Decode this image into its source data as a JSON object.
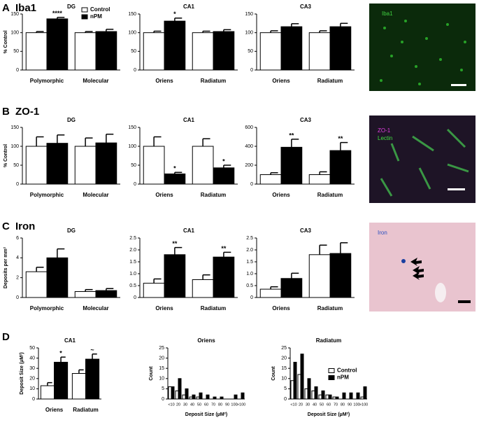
{
  "panels": [
    {
      "letter": "A",
      "label": "Iba1"
    },
    {
      "letter": "B",
      "label": "ZO-1"
    },
    {
      "letter": "C",
      "label": "Iron"
    },
    {
      "letter": "D"
    }
  ],
  "images": [
    {
      "labels": [
        "Iba1"
      ]
    },
    {
      "labels": [
        "ZO-1",
        "Lectin"
      ]
    },
    {
      "labels": [
        "Iron"
      ]
    }
  ],
  "chart_data": [
    {
      "type": "bar",
      "title": "DG",
      "ylabel": "% Control",
      "categories": [
        "Polymorphic",
        "Molecular"
      ],
      "ylim": [
        0,
        150
      ],
      "yticks": [
        0,
        50,
        100,
        150
      ],
      "legend": "upper right",
      "series": [
        {
          "name": "Control",
          "color": "#ffffff",
          "values": [
            100,
            100
          ],
          "errors": [
            3,
            3
          ]
        },
        {
          "name": "nPM",
          "color": "#000000",
          "values": [
            137,
            103
          ],
          "errors": [
            4,
            6
          ],
          "stars": [
            "****",
            null
          ]
        }
      ]
    },
    {
      "type": "bar",
      "title": "CA1",
      "categories": [
        "Oriens",
        "Radiatum"
      ],
      "ylim": [
        0,
        150
      ],
      "yticks": [
        0,
        50,
        100,
        150
      ],
      "series": [
        {
          "color": "#ffffff",
          "values": [
            100,
            100
          ],
          "errors": [
            4,
            4
          ]
        },
        {
          "color": "#000000",
          "values": [
            131,
            103
          ],
          "errors": [
            8,
            5
          ],
          "stars": [
            "*",
            null
          ]
        }
      ]
    },
    {
      "type": "bar",
      "title": "CA3",
      "categories": [
        "Oriens",
        "Radiatum"
      ],
      "ylim": [
        0,
        150
      ],
      "yticks": [
        0,
        50,
        100,
        150
      ],
      "series": [
        {
          "color": "#ffffff",
          "values": [
            100,
            100
          ],
          "errors": [
            5,
            5
          ]
        },
        {
          "color": "#000000",
          "values": [
            116,
            116
          ],
          "errors": [
            8,
            9
          ]
        }
      ]
    },
    {
      "type": "bar",
      "title": "DG",
      "ylabel": "% Control",
      "categories": [
        "Polymorphic",
        "Molecular"
      ],
      "ylim": [
        0,
        150
      ],
      "yticks": [
        0,
        50,
        100,
        150
      ],
      "series": [
        {
          "color": "#ffffff",
          "values": [
            100,
            100
          ],
          "errors": [
            25,
            22
          ]
        },
        {
          "color": "#000000",
          "values": [
            108,
            109
          ],
          "errors": [
            22,
            23
          ]
        }
      ]
    },
    {
      "type": "bar",
      "title": "CA1",
      "categories": [
        "Oriens",
        "Radiatum"
      ],
      "ylim": [
        0,
        150
      ],
      "yticks": [
        0,
        50,
        100,
        150
      ],
      "series": [
        {
          "color": "#ffffff",
          "values": [
            100,
            100
          ],
          "errors": [
            25,
            20
          ]
        },
        {
          "color": "#000000",
          "values": [
            27,
            43
          ],
          "errors": [
            4,
            7
          ],
          "stars": [
            "*",
            "*"
          ]
        }
      ]
    },
    {
      "type": "bar",
      "title": "CA3",
      "categories": [
        "Oriens",
        "Radiatum"
      ],
      "ylim": [
        0,
        600
      ],
      "yticks": [
        0,
        200,
        400,
        600
      ],
      "series": [
        {
          "color": "#ffffff",
          "values": [
            100,
            100
          ],
          "errors": [
            20,
            30
          ]
        },
        {
          "color": "#000000",
          "values": [
            390,
            355
          ],
          "errors": [
            85,
            85
          ],
          "stars": [
            "**",
            "**"
          ]
        }
      ]
    },
    {
      "type": "bar",
      "title": "DG",
      "ylabel": "Deposits per mm²",
      "categories": [
        "Polymorphic",
        "Molecular"
      ],
      "ylim": [
        0,
        6
      ],
      "yticks": [
        0,
        2,
        4,
        6
      ],
      "series": [
        {
          "color": "#ffffff",
          "values": [
            2.6,
            0.6
          ],
          "errors": [
            0.45,
            0.2
          ]
        },
        {
          "color": "#000000",
          "values": [
            4.0,
            0.7
          ],
          "errors": [
            0.9,
            0.2
          ]
        }
      ]
    },
    {
      "type": "bar",
      "title": "CA1",
      "categories": [
        "Oriens",
        "Radiatum"
      ],
      "ylim": [
        0,
        2.5
      ],
      "yticks": [
        0,
        0.5,
        {
          "value": 1,
          "label": "1.0"
        },
        1.5,
        {
          "value": 2,
          "label": "2.0"
        },
        2.5
      ],
      "series": [
        {
          "color": "#ffffff",
          "values": [
            0.6,
            0.75
          ],
          "errors": [
            0.18,
            0.2
          ]
        },
        {
          "color": "#000000",
          "values": [
            1.8,
            1.7
          ],
          "errors": [
            0.3,
            0.2
          ],
          "stars": [
            "**",
            "**"
          ]
        }
      ]
    },
    {
      "type": "bar",
      "title": "CA3",
      "categories": [
        "Oriens",
        "Radiatum"
      ],
      "ylim": [
        0,
        2.5
      ],
      "yticks": [
        0,
        0.5,
        {
          "value": 1,
          "label": "1.0"
        },
        1.5,
        {
          "value": 2,
          "label": "2.0"
        },
        2.5
      ],
      "series": [
        {
          "color": "#ffffff",
          "values": [
            0.35,
            1.8
          ],
          "errors": [
            0.1,
            0.4
          ]
        },
        {
          "color": "#000000",
          "values": [
            0.8,
            1.85
          ],
          "errors": [
            0.22,
            0.45
          ]
        }
      ]
    },
    {
      "type": "bar",
      "title": "CA1",
      "ylabel": "Deposit Size (µM²)",
      "categories": [
        "Oriens",
        "Radiatum"
      ],
      "ylim": [
        0,
        50
      ],
      "yticks": [
        0,
        10,
        20,
        30,
        40,
        50
      ],
      "series": [
        {
          "color": "#ffffff",
          "values": [
            13,
            25
          ],
          "errors": [
            3,
            3.5
          ]
        },
        {
          "color": "#000000",
          "values": [
            36,
            39
          ],
          "errors": [
            5,
            5
          ],
          "stars": [
            "*",
            "~"
          ]
        }
      ]
    },
    {
      "type": "bar",
      "title": "Oriens",
      "ylabel": "Count",
      "xlabel": "Deposit Size (µM²)",
      "categories": [
        "<10",
        "20",
        "30",
        "40",
        "50",
        "60",
        "70",
        "80",
        "90",
        "100",
        ">100"
      ],
      "ylim": [
        0,
        25
      ],
      "yticks": [
        0,
        5,
        10,
        15,
        20,
        25
      ],
      "series": [
        {
          "color": "#ffffff",
          "values": [
            6,
            4,
            2,
            1,
            1,
            0,
            0,
            0,
            0,
            0,
            0
          ]
        },
        {
          "color": "#000000",
          "values": [
            6,
            10,
            5,
            2,
            3,
            2,
            1,
            1,
            0,
            2,
            3
          ]
        }
      ]
    },
    {
      "type": "bar",
      "title": "Radiatum",
      "ylabel": "Count",
      "xlabel": "Deposit Size (µM²)",
      "categories": [
        "<10",
        "20",
        "30",
        "40",
        "50",
        "60",
        "70",
        "80",
        "90",
        "100",
        ">100"
      ],
      "ylim": [
        0,
        25
      ],
      "yticks": [
        0,
        5,
        10,
        15,
        20,
        25
      ],
      "legend": "center right",
      "series": [
        {
          "name": "Control",
          "color": "#ffffff",
          "values": [
            9,
            12,
            5,
            4,
            2,
            2,
            1,
            0,
            0,
            0,
            1
          ]
        },
        {
          "name": "nPM",
          "color": "#000000",
          "values": [
            18,
            22,
            10,
            6,
            4,
            2,
            1,
            3,
            3,
            3,
            6
          ]
        }
      ]
    }
  ]
}
